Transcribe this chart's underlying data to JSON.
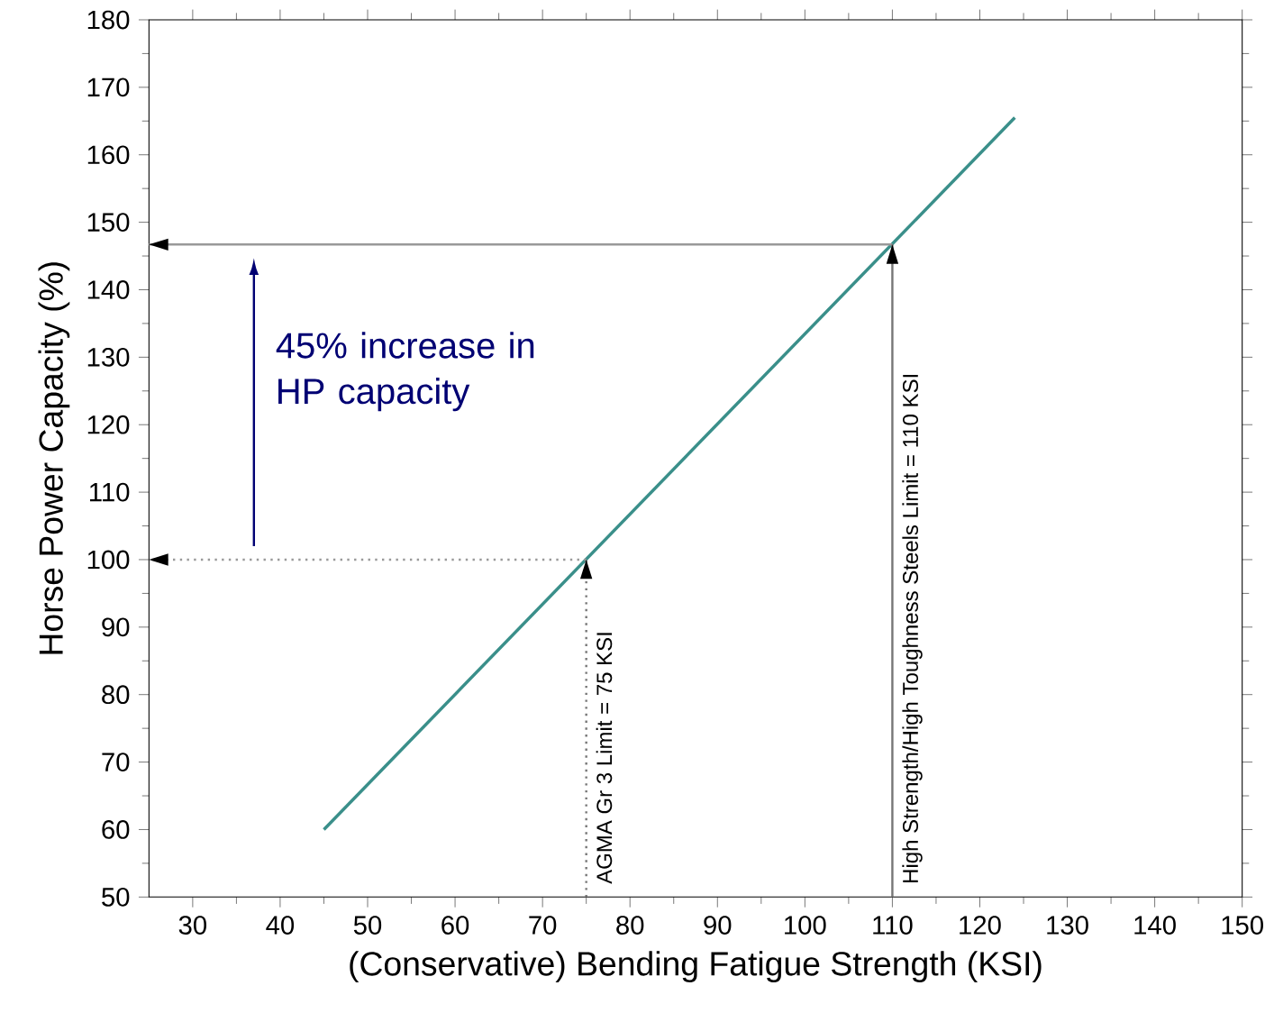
{
  "chart_data": {
    "type": "line",
    "xlabel": "(Conservative) Bending Fatigue Strength (KSI)",
    "ylabel": "Horse Power Capacity (%)",
    "xlim": [
      25,
      150
    ],
    "xticks": [
      30,
      40,
      50,
      60,
      70,
      80,
      90,
      100,
      110,
      120,
      130,
      140,
      150
    ],
    "ylim": [
      50,
      180
    ],
    "yticks": [
      50,
      60,
      70,
      80,
      90,
      100,
      110,
      120,
      130,
      140,
      150,
      160,
      170,
      180
    ],
    "marker": "none",
    "series": [
      {
        "color": "#3a8f8a",
        "x": [
          45,
          124
        ],
        "values": [
          60,
          165.5
        ]
      },
      {
        "color": "#999999",
        "x": [
          110,
          25
        ],
        "values": [
          146.7,
          146.7
        ],
        "line_style": "solid"
      },
      {
        "color": "#999999",
        "x": [
          75,
          25
        ],
        "values": [
          100,
          100
        ],
        "line_style": "dotted"
      },
      {
        "color": "#777777",
        "x": [
          75,
          75
        ],
        "values": [
          50,
          100
        ],
        "line_style": "dotted"
      },
      {
        "color": "#777777",
        "x": [
          110,
          110
        ],
        "values": [
          50,
          146.7
        ],
        "line_style": "solid"
      }
    ],
    "annotations": [
      "AGMA Gr 3 Limit = 75 KSI",
      "High Strength/High Toughness Steels Limit = 110 KSI",
      "45% increase in HP capacity"
    ]
  }
}
